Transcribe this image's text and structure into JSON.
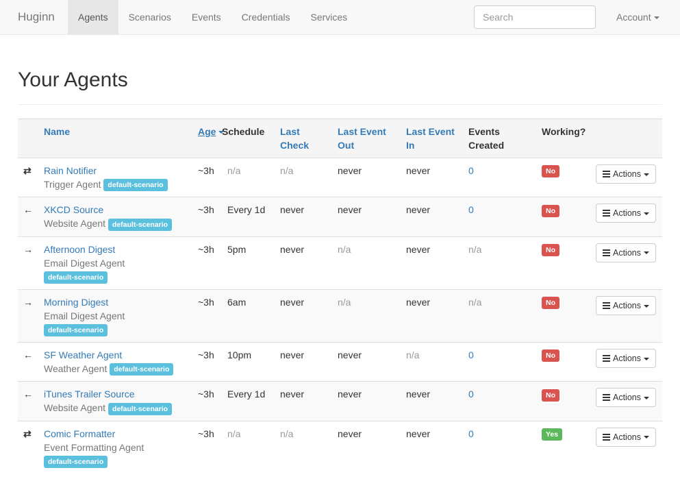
{
  "nav": {
    "brand": "Huginn",
    "tabs": [
      {
        "label": "Agents",
        "active": true
      },
      {
        "label": "Scenarios"
      },
      {
        "label": "Events"
      },
      {
        "label": "Credentials"
      },
      {
        "label": "Services"
      }
    ],
    "search_placeholder": "Search",
    "account": "Account"
  },
  "page_title": "Your Agents",
  "table": {
    "headers": {
      "name": "Name",
      "age": "Age",
      "schedule": "Schedule",
      "last_check": "Last Check",
      "last_event_out": "Last Event Out",
      "last_event_in": "Last Event In",
      "events_created": "Events Created",
      "working": "Working?"
    },
    "sort": {
      "column": "Age",
      "direction": "descending"
    },
    "actions_label": "Actions",
    "rows": [
      {
        "icon": "⇄",
        "name": "Rain Notifier",
        "type": "Trigger Agent",
        "scenario": "default-scenario",
        "age": "~3h",
        "schedule": "n/a",
        "last_check": "n/a",
        "last_event_out": "never",
        "last_event_in": "never",
        "events_created": "0",
        "working": "No"
      },
      {
        "icon": "←",
        "name": "XKCD Source",
        "type": "Website Agent",
        "scenario": "default-scenario",
        "age": "~3h",
        "schedule": "Every 1d",
        "last_check": "never",
        "last_event_out": "never",
        "last_event_in": "never",
        "events_created": "0",
        "working": "No"
      },
      {
        "icon": "→",
        "name": "Afternoon Digest",
        "type": "Email Digest Agent",
        "scenario": "default-scenario",
        "age": "~3h",
        "schedule": "5pm",
        "last_check": "never",
        "last_event_out": "n/a",
        "last_event_in": "never",
        "events_created": "n/a",
        "working": "No"
      },
      {
        "icon": "→",
        "name": "Morning Digest",
        "type": "Email Digest Agent",
        "scenario": "default-scenario",
        "age": "~3h",
        "schedule": "6am",
        "last_check": "never",
        "last_event_out": "n/a",
        "last_event_in": "never",
        "events_created": "n/a",
        "working": "No"
      },
      {
        "icon": "←",
        "name": "SF Weather Agent",
        "type": "Weather Agent",
        "scenario": "default-scenario",
        "age": "~3h",
        "schedule": "10pm",
        "last_check": "never",
        "last_event_out": "never",
        "last_event_in": "n/a",
        "events_created": "0",
        "working": "No"
      },
      {
        "icon": "←",
        "name": "iTunes Trailer Source",
        "type": "Website Agent",
        "scenario": "default-scenario",
        "age": "~3h",
        "schedule": "Every 1d",
        "last_check": "never",
        "last_event_out": "never",
        "last_event_in": "never",
        "events_created": "0",
        "working": "No"
      },
      {
        "icon": "⇄",
        "name": "Comic Formatter",
        "type": "Event Formatting Agent",
        "scenario": "default-scenario",
        "age": "~3h",
        "schedule": "n/a",
        "last_check": "n/a",
        "last_event_out": "never",
        "last_event_in": "never",
        "events_created": "0",
        "working": "Yes"
      }
    ]
  }
}
